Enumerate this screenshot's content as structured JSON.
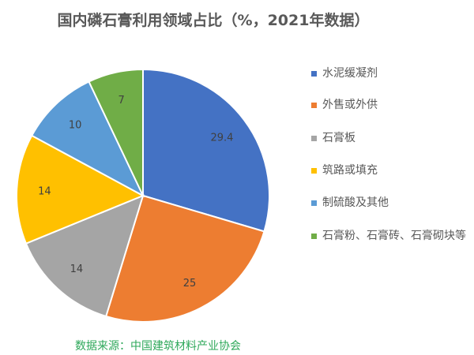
{
  "chart_data": {
    "type": "pie",
    "title": "国内磷石膏利用领域占比（%，2021年数据）",
    "categories": [
      "水泥缓凝剂",
      "外售或外供",
      "石膏板",
      "筑路或填充",
      "制硫酸及其他",
      "石膏粉、石膏砖、石膏砌块等"
    ],
    "values": [
      29.4,
      25,
      14,
      14,
      10,
      7
    ],
    "labels": [
      "29.4",
      "25",
      "14",
      "14",
      "10",
      "7"
    ],
    "colors": [
      "#4472c4",
      "#ed7d31",
      "#a5a5a5",
      "#ffc000",
      "#5b9bd5",
      "#70ad47"
    ],
    "legend_position": "right",
    "start": "top, clockwise"
  },
  "source": "数据来源：中国建筑材料产业协会"
}
